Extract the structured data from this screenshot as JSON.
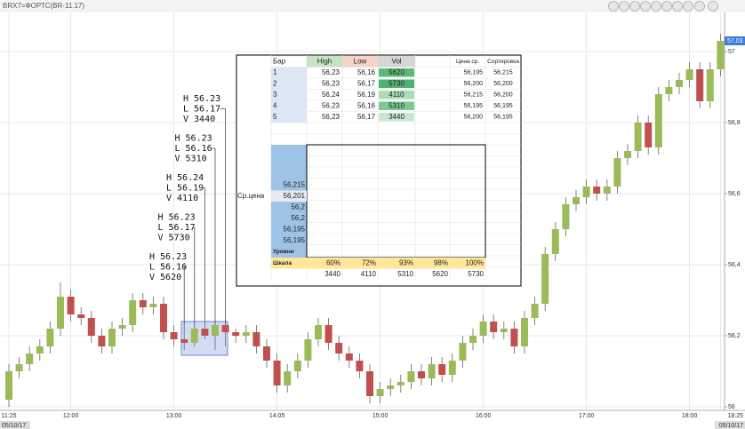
{
  "header": {
    "title": "BRX7=ФОРТС(BR-11.17)"
  },
  "chart_data": {
    "type": "candlestick",
    "categories": [
      "11:25",
      null,
      null,
      null,
      null,
      null,
      "12:00",
      null,
      null,
      null,
      null,
      null,
      null,
      null,
      null,
      null,
      "13:00",
      null,
      null,
      null,
      null,
      null,
      null,
      null,
      null,
      null,
      "14:05",
      null,
      null,
      null,
      null,
      null,
      null,
      null,
      null,
      null,
      "15:00",
      null,
      null,
      null,
      null,
      null,
      null,
      null,
      null,
      null,
      "16:00",
      null,
      null,
      null,
      null,
      null,
      null,
      null,
      null,
      null,
      "17:00",
      null,
      null,
      null,
      null,
      null,
      null,
      null,
      null,
      null,
      "18:00",
      null,
      null,
      "18:25"
    ],
    "open": [
      56.02,
      56.1,
      56.12,
      56.15,
      56.17,
      56.22,
      56.31,
      56.26,
      56.25,
      56.2,
      56.17,
      56.22,
      56.23,
      56.3,
      56.28,
      56.29,
      56.21,
      56.19,
      56.18,
      56.22,
      56.2,
      56.23,
      56.21,
      56.2,
      56.21,
      56.17,
      56.13,
      56.06,
      56.1,
      56.13,
      56.19,
      56.23,
      56.18,
      56.15,
      56.13,
      56.1,
      56.03,
      56.05,
      56.06,
      56.07,
      56.1,
      56.08,
      56.12,
      56.09,
      56.13,
      56.18,
      56.2,
      56.24,
      56.21,
      56.22,
      56.17,
      56.25,
      56.29,
      56.43,
      56.5,
      56.57,
      56.59,
      56.62,
      56.6,
      56.62,
      56.7,
      56.72,
      56.8,
      56.73,
      56.88,
      56.9,
      56.92,
      56.95,
      56.86,
      56.95
    ],
    "high": [
      56.12,
      56.14,
      56.17,
      56.19,
      56.24,
      56.35,
      56.33,
      56.28,
      56.27,
      56.22,
      56.24,
      56.25,
      56.32,
      56.32,
      56.31,
      56.31,
      56.23,
      56.23,
      56.23,
      56.24,
      56.23,
      56.23,
      56.22,
      56.23,
      56.23,
      56.19,
      56.15,
      56.12,
      56.15,
      56.21,
      56.25,
      56.25,
      56.2,
      56.17,
      56.15,
      56.12,
      56.07,
      56.08,
      56.09,
      56.12,
      56.12,
      56.14,
      56.14,
      56.15,
      56.2,
      56.22,
      56.26,
      56.26,
      56.24,
      56.24,
      56.27,
      56.31,
      56.45,
      56.52,
      56.59,
      56.61,
      56.64,
      56.64,
      56.64,
      56.72,
      56.74,
      56.82,
      56.82,
      56.9,
      56.92,
      56.94,
      56.97,
      56.97,
      56.97,
      57.05
    ],
    "low": [
      56.0,
      56.08,
      56.1,
      56.13,
      56.15,
      56.2,
      56.24,
      56.23,
      56.18,
      56.15,
      56.15,
      56.2,
      56.21,
      56.26,
      56.26,
      56.19,
      56.17,
      56.16,
      56.17,
      56.19,
      56.16,
      56.17,
      56.18,
      56.18,
      56.15,
      56.11,
      56.04,
      56.04,
      56.08,
      56.11,
      56.17,
      56.16,
      56.13,
      56.11,
      56.08,
      56.01,
      56.01,
      56.03,
      56.04,
      56.05,
      56.06,
      56.06,
      56.07,
      56.07,
      56.11,
      56.16,
      56.18,
      56.19,
      56.19,
      56.15,
      56.15,
      56.23,
      56.27,
      56.41,
      56.48,
      56.55,
      56.57,
      56.58,
      56.58,
      56.6,
      56.68,
      56.7,
      56.71,
      56.71,
      56.86,
      56.88,
      56.9,
      56.84,
      56.84,
      56.93
    ],
    "close": [
      56.1,
      56.12,
      56.15,
      56.17,
      56.22,
      56.31,
      56.26,
      56.25,
      56.2,
      56.17,
      56.22,
      56.23,
      56.3,
      56.28,
      56.29,
      56.21,
      56.19,
      56.18,
      56.22,
      56.2,
      56.23,
      56.21,
      56.2,
      56.21,
      56.17,
      56.13,
      56.06,
      56.1,
      56.13,
      56.19,
      56.23,
      56.18,
      56.15,
      56.13,
      56.1,
      56.03,
      56.05,
      56.06,
      56.07,
      56.1,
      56.08,
      56.12,
      56.09,
      56.13,
      56.18,
      56.2,
      56.24,
      56.21,
      56.22,
      56.17,
      56.25,
      56.29,
      56.43,
      56.5,
      56.57,
      56.59,
      56.62,
      56.6,
      56.62,
      56.7,
      56.72,
      56.8,
      56.73,
      56.88,
      56.9,
      56.92,
      56.95,
      56.86,
      56.95,
      57.03
    ],
    "up_color": "#9bbb59",
    "down_color": "#c0504d",
    "ylim": [
      55.99,
      57.09
    ],
    "yticks": [
      56,
      {
        "value": 56.2,
        "label": "56,2"
      },
      {
        "value": 56.4,
        "label": "56,4"
      },
      {
        "value": 56.6,
        "label": "56,6"
      },
      {
        "value": 56.8,
        "label": "56,8"
      },
      57
    ],
    "grid": true,
    "price_marker": {
      "value": 57.03,
      "label": "57,03"
    },
    "dates": [
      "05/10/17",
      "05/10/17"
    ],
    "annotations": [
      [
        "H 56.23",
        "L 56.17",
        "V 3440"
      ],
      [
        "H 56.23",
        "L 56.16",
        "V 5310"
      ],
      [
        "H 56.24",
        "L 56.19",
        "V 4110"
      ],
      [
        "H 56.23",
        "L 56.17",
        "V 5730"
      ],
      [
        "H 56.23",
        "L 56.16",
        "V 5620"
      ]
    ]
  },
  "table": {
    "header": [
      "Бар",
      "High",
      "Low",
      "Vol",
      "Цена ср.",
      "Сортировка"
    ],
    "rows": [
      [
        "1",
        "56,23",
        "56,16",
        "5620",
        "56,195",
        "56,215"
      ],
      [
        "2",
        "56,23",
        "56,17",
        "5730",
        "56,200",
        "56,200"
      ],
      [
        "3",
        "56,24",
        "56,19",
        "4110",
        "56,215",
        "56,200"
      ],
      [
        "4",
        "56,23",
        "56,16",
        "5310",
        "56,195",
        "56,195"
      ],
      [
        "5",
        "56,23",
        "56,17",
        "3440",
        "56,200",
        "56,195"
      ]
    ],
    "vol_colors": [
      "#5cb97a",
      "#4fb371",
      "#a9dcb7",
      "#7cc792",
      "#c6e8cf"
    ],
    "levels": [
      "56,215",
      "56,201",
      "56,2",
      "56,2",
      "56,195",
      "56,195"
    ],
    "avg_label": "Ср.цена",
    "levels_label": "Уровни",
    "scale_label": "Шкала",
    "scale": [
      "60%",
      "72%",
      "93%",
      "98%",
      "100%"
    ],
    "scale_volumes": [
      "3440",
      "4110",
      "5310",
      "5620",
      "5730"
    ]
  }
}
